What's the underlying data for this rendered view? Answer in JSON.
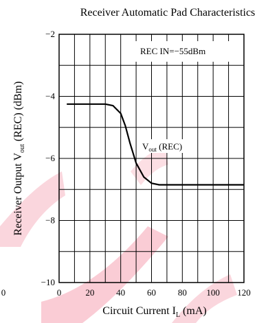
{
  "chart_data": {
    "type": "line",
    "title": "Receiver Automatic Pad Characteristics",
    "xlabel": "Circuit Current  I",
    "xlabel_sub": "L",
    "xlabel_unit": " (mA)",
    "ylabel_main": "Receiver Output  V",
    "ylabel_sub": "out",
    "ylabel_unit": " (REC) (dBm)",
    "xlim": [
      0,
      120
    ],
    "ylim": [
      -10,
      -2
    ],
    "x_ticks": [
      "0",
      "20",
      "40",
      "60",
      "80",
      "100",
      "120"
    ],
    "y_ticks": [
      "−10",
      "−8",
      "−6",
      "−4",
      "−2"
    ],
    "y_tick_values": [
      -10,
      -8,
      -6,
      -4,
      -2
    ],
    "x_tick_values": [
      0,
      20,
      40,
      60,
      80,
      100,
      120
    ],
    "x_minor_step": 10,
    "y_minor_step": 1,
    "grid": true,
    "condition_label": "REC  IN=−55dBm",
    "series": [
      {
        "name": "V",
        "name_sub": "out",
        "name_suffix": " (REC)",
        "x": [
          5,
          30,
          35,
          40,
          43,
          46,
          50,
          55,
          60,
          65,
          70,
          80,
          100,
          122
        ],
        "y": [
          -4.25,
          -4.25,
          -4.3,
          -4.55,
          -4.95,
          -5.5,
          -6.15,
          -6.6,
          -6.8,
          -6.85,
          -6.85,
          -6.85,
          -6.85,
          -6.85
        ]
      }
    ],
    "stray_tick_label": "0"
  },
  "colors": {
    "watermark": "#f5a3b3",
    "axis": "#000000"
  }
}
